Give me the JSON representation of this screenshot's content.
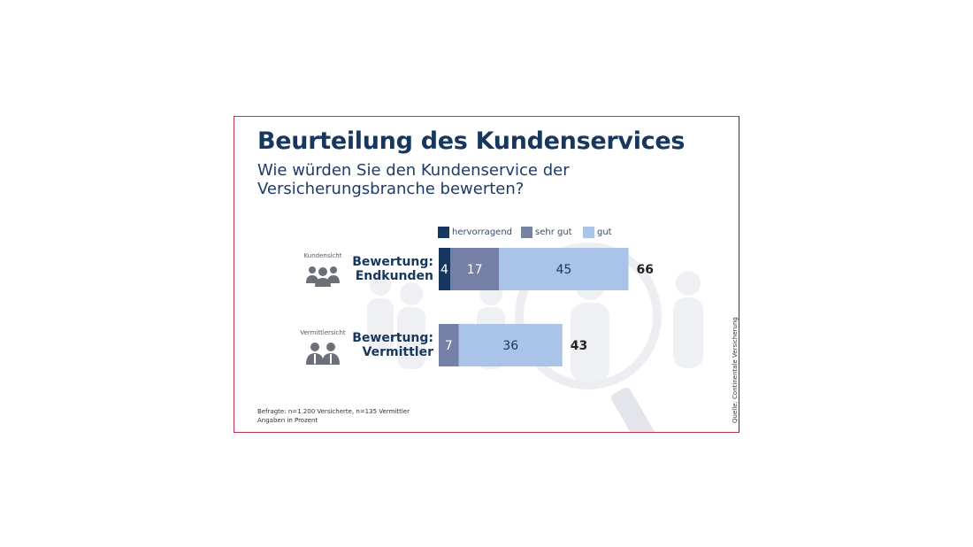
{
  "title": "Beurteilung des Kundenservices",
  "subtitle": "Wie würden Sie den Kundenservice der Versicherungsbranche bewerten?",
  "legend": [
    {
      "label": "hervorragend",
      "color": "#17375e"
    },
    {
      "label": "sehr gut",
      "color": "#7580a6"
    },
    {
      "label": "gut",
      "color": "#a9c4e8"
    }
  ],
  "rows": [
    {
      "category": "Kundensicht",
      "label_line1": "Bewertung:",
      "label_line2": "Endkunden",
      "icon": "group-icon"
    },
    {
      "category": "Vermittlersicht",
      "label_line1": "Bewertung:",
      "label_line2": "Vermittler",
      "icon": "agents-icon"
    }
  ],
  "footnote_line1": "Befragte: n=1.200 Versicherte, n=135 Vermittler",
  "footnote_line2": "Angaben in Prozent",
  "source": "Quelle: Continentale Versicherung",
  "chart_data": {
    "type": "bar",
    "orientation": "horizontal",
    "stacked": true,
    "categories": [
      "Bewertung: Endkunden",
      "Bewertung: Vermittler"
    ],
    "series": [
      {
        "name": "hervorragend",
        "values": [
          4,
          0
        ],
        "color": "#17375e"
      },
      {
        "name": "sehr gut",
        "values": [
          17,
          7
        ],
        "color": "#7580a6"
      },
      {
        "name": "gut",
        "values": [
          45,
          36
        ],
        "color": "#a9c4e8"
      }
    ],
    "totals": [
      66,
      43
    ],
    "legend_position": "top"
  }
}
